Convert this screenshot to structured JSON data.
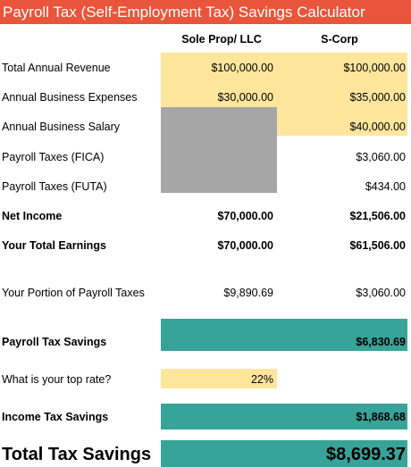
{
  "title": "Payroll Tax (Self-Employment Tax) Savings Calculator",
  "columns": [
    "Sole Prop/ LLC",
    "S-Corp"
  ],
  "rows": [
    {
      "label": "Total Annual Revenue",
      "sole_prop": "$100,000.00",
      "s_corp": "$100,000.00"
    },
    {
      "label": "Annual Business Expenses",
      "sole_prop": "$30,000.00",
      "s_corp": "$35,000.00"
    },
    {
      "label": "Annual Business Salary",
      "s_corp": "$40,000.00"
    },
    {
      "label": "Payroll Taxes (FICA)",
      "s_corp": "$3,060.00"
    },
    {
      "label": "Payroll Taxes (FUTA)",
      "s_corp": "$434.00"
    },
    {
      "label": "Net Income",
      "sole_prop": "$70,000.00",
      "s_corp": "$21,506.00"
    },
    {
      "label": "Your Total Earnings",
      "sole_prop": "$70,000.00",
      "s_corp": "$61,506.00"
    },
    {
      "label": "Your Portion of Payroll Taxes",
      "sole_prop": "$9,890.69",
      "s_corp": "$3,060.00"
    },
    {
      "label": "Payroll Tax Savings",
      "s_corp": "$6,830.69"
    },
    {
      "label": "What is your top rate?",
      "sole_prop": "22%"
    },
    {
      "label": "Income Tax Savings",
      "s_corp": "$1,868.68"
    },
    {
      "label": "Total Tax Savings",
      "s_corp": "$8,699.37"
    }
  ]
}
